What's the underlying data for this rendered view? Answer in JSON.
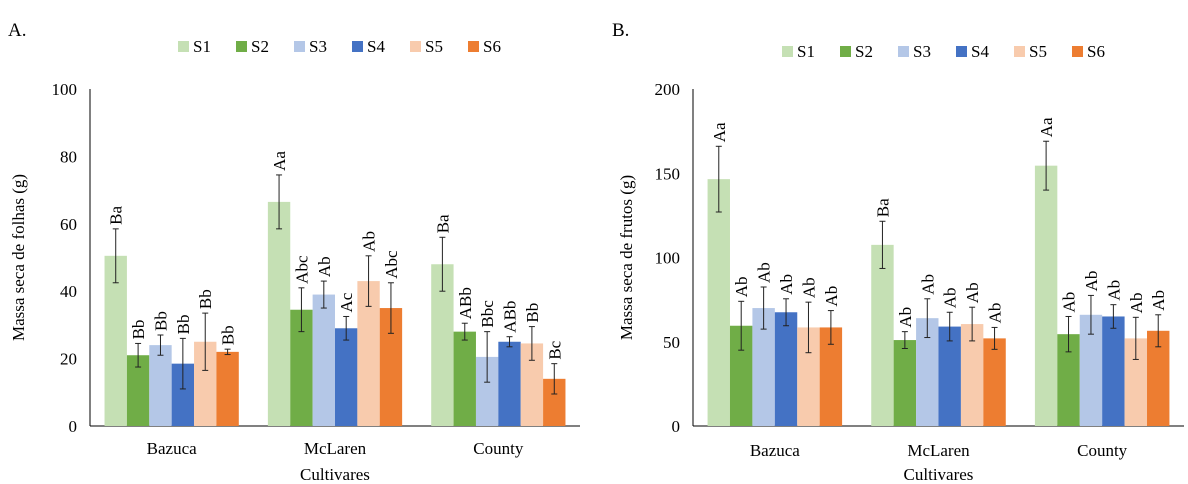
{
  "palette": {
    "S1": "#c5e0b4",
    "S2": "#70ad47",
    "S3": "#b4c7e7",
    "S4": "#4472c4",
    "S5": "#f8cbad",
    "S6": "#ed7d31",
    "axis": "#000000",
    "errorbar": "#222222"
  },
  "chart_data": [
    {
      "panel_label": "A.",
      "type": "bar",
      "categories": [
        "Bazuca",
        "McLaren",
        "County"
      ],
      "xlabel": "Cultivares",
      "ylabel": "Massa seca de folhas (g)",
      "ylim": [
        0,
        100
      ],
      "yticks": [
        "0",
        "20",
        "40",
        "60",
        "80",
        "100"
      ],
      "grid": false,
      "legend": "top",
      "series": [
        {
          "name": "S1",
          "values": [
            50.5,
            66.5,
            48
          ],
          "errors": [
            8,
            8,
            8
          ],
          "labels": [
            "Ba",
            "Aa",
            "Ba"
          ]
        },
        {
          "name": "S2",
          "values": [
            21,
            34.5,
            28
          ],
          "errors": [
            3.5,
            6.5,
            2.5
          ],
          "labels": [
            "Bb",
            "Abc",
            "ABb"
          ]
        },
        {
          "name": "S3",
          "values": [
            24,
            39,
            20.5
          ],
          "errors": [
            3,
            4,
            7.5
          ],
          "labels": [
            "Bb",
            "Ab",
            "Bbc"
          ]
        },
        {
          "name": "S4",
          "values": [
            18.5,
            29,
            25
          ],
          "errors": [
            7.5,
            3.5,
            1.5
          ],
          "labels": [
            "Bb",
            "Ac",
            "ABb"
          ]
        },
        {
          "name": "S5",
          "values": [
            25,
            43,
            24.5
          ],
          "errors": [
            8.5,
            7.5,
            5
          ],
          "labels": [
            "Bb",
            "Ab",
            "Bb"
          ]
        },
        {
          "name": "S6",
          "values": [
            22,
            35,
            14
          ],
          "errors": [
            0.8,
            7.5,
            4.5
          ],
          "labels": [
            "Bb",
            "Abc",
            "Bc"
          ]
        }
      ]
    },
    {
      "panel_label": "B.",
      "type": "bar",
      "categories": [
        "Bazuca",
        "McLaren",
        "County"
      ],
      "xlabel": "Cultivares",
      "ylabel": "Massa seca de frutos (g)",
      "ylim": [
        0,
        200
      ],
      "yticks": [
        "0",
        "50",
        "100",
        "150",
        "200"
      ],
      "grid": false,
      "legend": "top",
      "series": [
        {
          "name": "S1",
          "values": [
            146.5,
            107.5,
            154.5
          ],
          "errors": [
            19.5,
            14,
            14.5
          ],
          "labels": [
            "Aa",
            "Ba",
            "Aa"
          ]
        },
        {
          "name": "S2",
          "values": [
            59.5,
            51,
            54.5
          ],
          "errors": [
            14.5,
            5,
            10.5
          ],
          "labels": [
            "Ab",
            "Ab",
            "Ab"
          ]
        },
        {
          "name": "S3",
          "values": [
            70,
            64,
            66
          ],
          "errors": [
            12.5,
            11.5,
            11.5
          ],
          "labels": [
            "Ab",
            "Ab",
            "Ab"
          ]
        },
        {
          "name": "S4",
          "values": [
            67.5,
            59,
            65
          ],
          "errors": [
            8,
            8.5,
            7
          ],
          "labels": [
            "Ab",
            "Ab",
            "Ab"
          ]
        },
        {
          "name": "S5",
          "values": [
            58.5,
            60.5,
            52
          ],
          "errors": [
            15,
            10,
            12.5
          ],
          "labels": [
            "Ab",
            "Ab",
            "Ab"
          ]
        },
        {
          "name": "S6",
          "values": [
            58.5,
            52,
            56.5
          ],
          "errors": [
            10,
            6.5,
            9.5
          ],
          "labels": [
            "Ab",
            "Ab",
            "Ab"
          ]
        }
      ]
    }
  ]
}
